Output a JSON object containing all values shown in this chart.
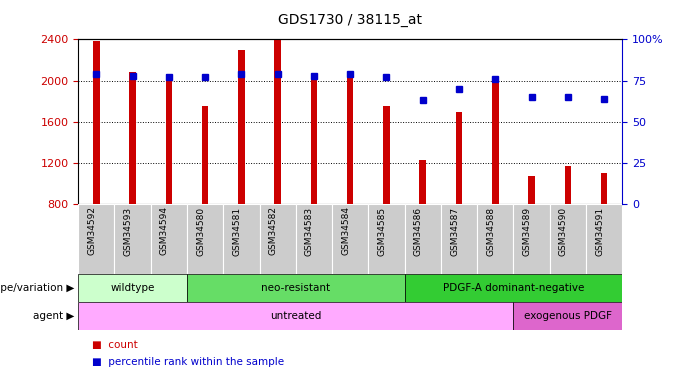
{
  "title": "GDS1730 / 38115_at",
  "samples": [
    "GSM34592",
    "GSM34593",
    "GSM34594",
    "GSM34580",
    "GSM34581",
    "GSM34582",
    "GSM34583",
    "GSM34584",
    "GSM34585",
    "GSM34586",
    "GSM34587",
    "GSM34588",
    "GSM34589",
    "GSM34590",
    "GSM34591"
  ],
  "counts": [
    2380,
    2080,
    2060,
    1750,
    2300,
    2390,
    2030,
    2080,
    1750,
    1230,
    1700,
    2010,
    1080,
    1170,
    1100
  ],
  "percentiles": [
    79,
    78,
    77,
    77,
    79,
    79,
    78,
    79,
    77,
    63,
    70,
    76,
    65,
    65,
    64
  ],
  "y_min": 800,
  "y_max": 2400,
  "y_ticks": [
    800,
    1200,
    1600,
    2000,
    2400
  ],
  "right_y_ticks": [
    0,
    25,
    50,
    75,
    100
  ],
  "right_y_labels": [
    "0",
    "25",
    "50",
    "75",
    "100%"
  ],
  "bar_color": "#cc0000",
  "dot_color": "#0000cc",
  "background_color": "#ffffff",
  "tick_label_color_left": "#cc0000",
  "tick_label_color_right": "#0000cc",
  "genotype_groups": [
    {
      "label": "wildtype",
      "start": 0,
      "end": 3,
      "color": "#ccffcc"
    },
    {
      "label": "neo-resistant",
      "start": 3,
      "end": 9,
      "color": "#66dd66"
    },
    {
      "label": "PDGF-A dominant-negative",
      "start": 9,
      "end": 15,
      "color": "#33cc33"
    }
  ],
  "agent_groups": [
    {
      "label": "untreated",
      "start": 0,
      "end": 12,
      "color": "#ffaaff"
    },
    {
      "label": "exogenous PDGF",
      "start": 12,
      "end": 15,
      "color": "#dd66cc"
    }
  ],
  "legend_count_label": "count",
  "legend_percentile_label": "percentile rank within the sample",
  "genotype_label": "genotype/variation",
  "agent_label": "agent",
  "fig_width": 6.8,
  "fig_height": 3.75,
  "dpi": 100
}
